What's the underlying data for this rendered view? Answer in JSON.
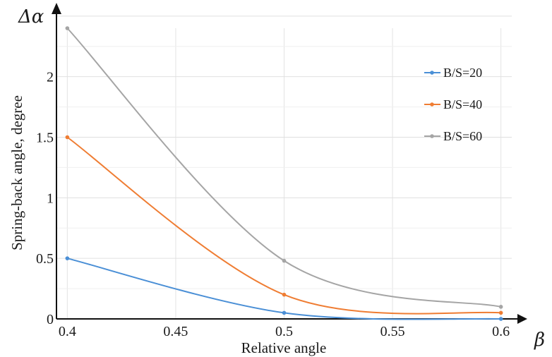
{
  "chart_data": {
    "type": "line",
    "title": "",
    "xlabel": "Relative angle",
    "ylabel": "Spring-back angle, degree",
    "x_symbol": "β",
    "y_symbol": "Δα",
    "xlim": [
      0.395,
      0.605
    ],
    "ylim": [
      0,
      2.4
    ],
    "grid": true,
    "legend": "top-right",
    "x_ticks": [
      {
        "value": 0.4,
        "label": "0.4"
      },
      {
        "value": 0.45,
        "label": "0.45"
      },
      {
        "value": 0.5,
        "label": "0.5"
      },
      {
        "value": 0.55,
        "label": "0.55"
      },
      {
        "value": 0.6,
        "label": "0.6"
      }
    ],
    "y_ticks": [
      {
        "value": 0,
        "label": "0"
      },
      {
        "value": 0.5,
        "label": "0.5"
      },
      {
        "value": 1,
        "label": "1"
      },
      {
        "value": 1.5,
        "label": "1.5"
      },
      {
        "value": 2,
        "label": "2"
      }
    ],
    "x": [
      0.4,
      0.5,
      0.6
    ],
    "series": [
      {
        "name": "B/S=20",
        "color": "#4a8fd6",
        "values": [
          0.5,
          0.05,
          0.0
        ]
      },
      {
        "name": "B/S=40",
        "color": "#ef7d33",
        "values": [
          1.5,
          0.2,
          0.05
        ]
      },
      {
        "name": "B/S=60",
        "color": "#a5a5a5",
        "values": [
          2.4,
          0.48,
          0.1
        ]
      }
    ]
  }
}
